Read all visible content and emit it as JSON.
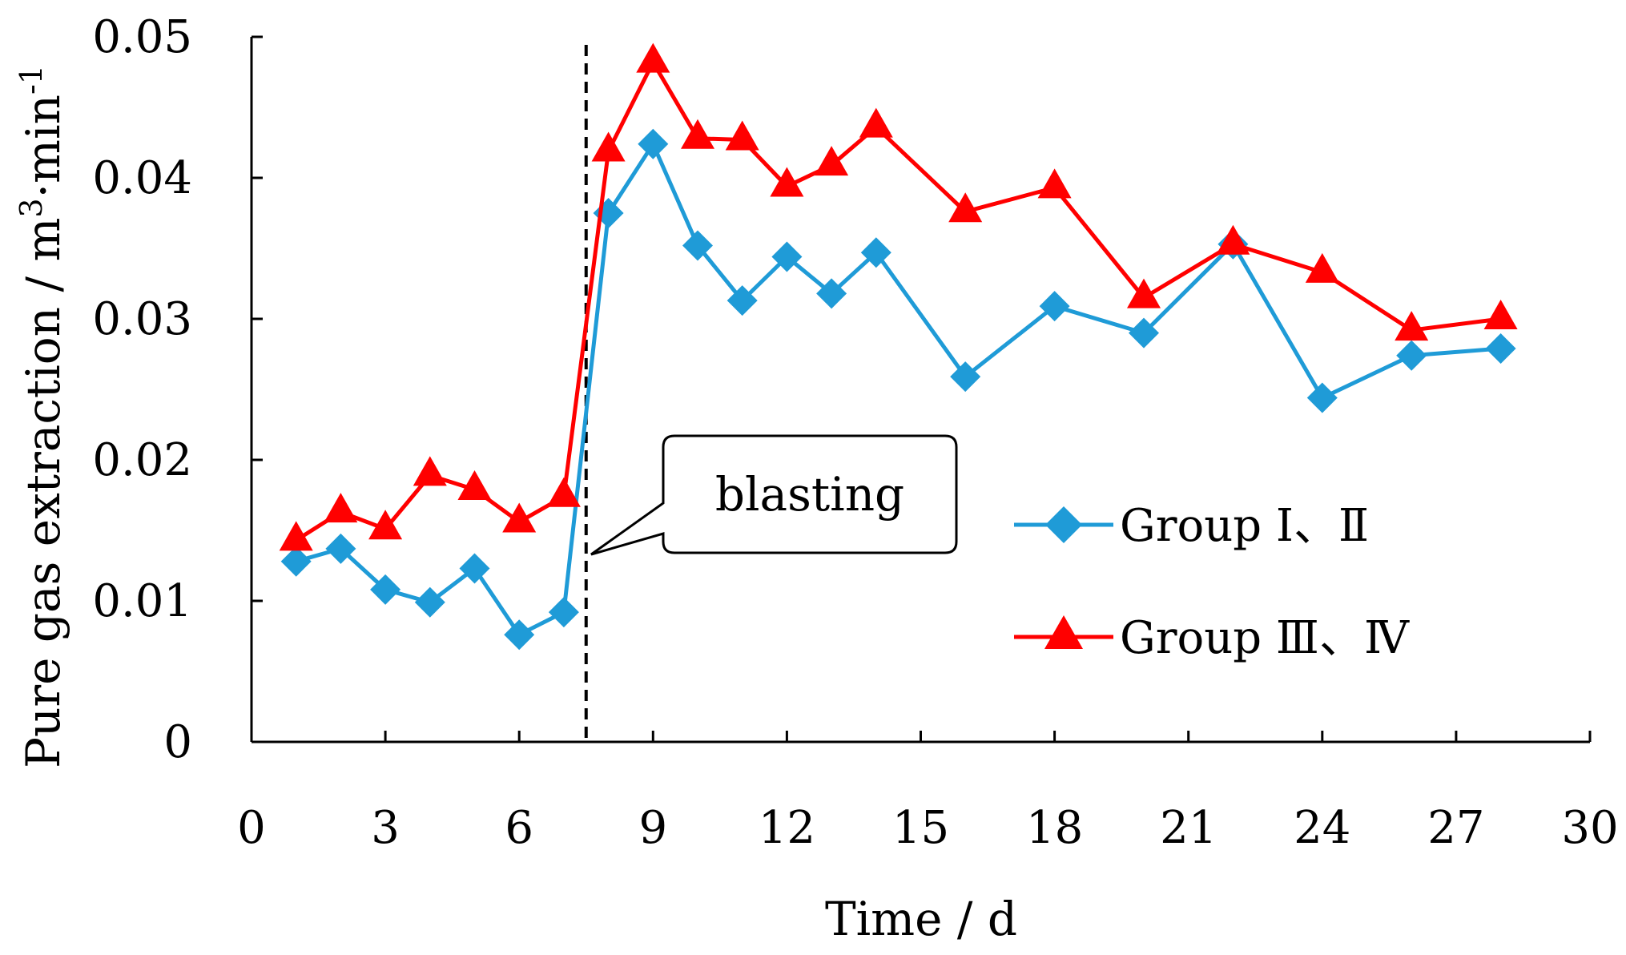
{
  "chart_data": {
    "type": "line",
    "title": "",
    "xlabel": "Time / d",
    "ylabel_main": "Pure gas extraction / m",
    "ylabel_sup1": "3",
    "ylabel_mid": "·min",
    "ylabel_sup2": "-1",
    "xlim": [
      0,
      30
    ],
    "ylim": [
      0,
      0.05
    ],
    "xticks": [
      "0",
      "3",
      "6",
      "9",
      "12",
      "15",
      "18",
      "21",
      "24",
      "27",
      "30"
    ],
    "xtick_values": [
      0,
      3,
      6,
      9,
      12,
      15,
      18,
      21,
      24,
      27,
      30
    ],
    "yticks": [
      "0",
      "0.01",
      "0.02",
      "0.03",
      "0.04",
      "0.05"
    ],
    "ytick_values": [
      0,
      0.01,
      0.02,
      0.03,
      0.04,
      0.05
    ],
    "series": [
      {
        "name": "Group  Ⅰ、Ⅱ",
        "color": "#1f9bd7",
        "marker": "diamond",
        "x": [
          1,
          2,
          3,
          4,
          5,
          6,
          7,
          8,
          9,
          10,
          11,
          12,
          13,
          14,
          16,
          18,
          20,
          22,
          24,
          26,
          28
        ],
        "values": [
          0.0128,
          0.0137,
          0.0108,
          0.0099,
          0.0123,
          0.0076,
          0.0092,
          0.0375,
          0.0424,
          0.0352,
          0.0313,
          0.0344,
          0.0318,
          0.0347,
          0.0259,
          0.0309,
          0.029,
          0.0353,
          0.0244,
          0.0274,
          0.0279
        ]
      },
      {
        "name": "Group Ⅲ、Ⅳ",
        "color": "#ff0000",
        "marker": "triangle",
        "x": [
          1,
          2,
          3,
          4,
          5,
          6,
          7,
          8,
          9,
          10,
          11,
          12,
          13,
          14,
          16,
          18,
          20,
          22,
          24,
          26,
          28
        ],
        "values": [
          0.0143,
          0.0163,
          0.0151,
          0.0189,
          0.0179,
          0.0156,
          0.0174,
          0.0419,
          0.0482,
          0.0428,
          0.0427,
          0.0394,
          0.0409,
          0.0436,
          0.0376,
          0.0393,
          0.0315,
          0.0353,
          0.0333,
          0.0292,
          0.03
        ]
      }
    ],
    "annotations": [
      {
        "text": "blasting",
        "x": 7.5,
        "style": "vertical dashed line with callout box"
      }
    ],
    "legend_position": "right",
    "grid": false
  }
}
